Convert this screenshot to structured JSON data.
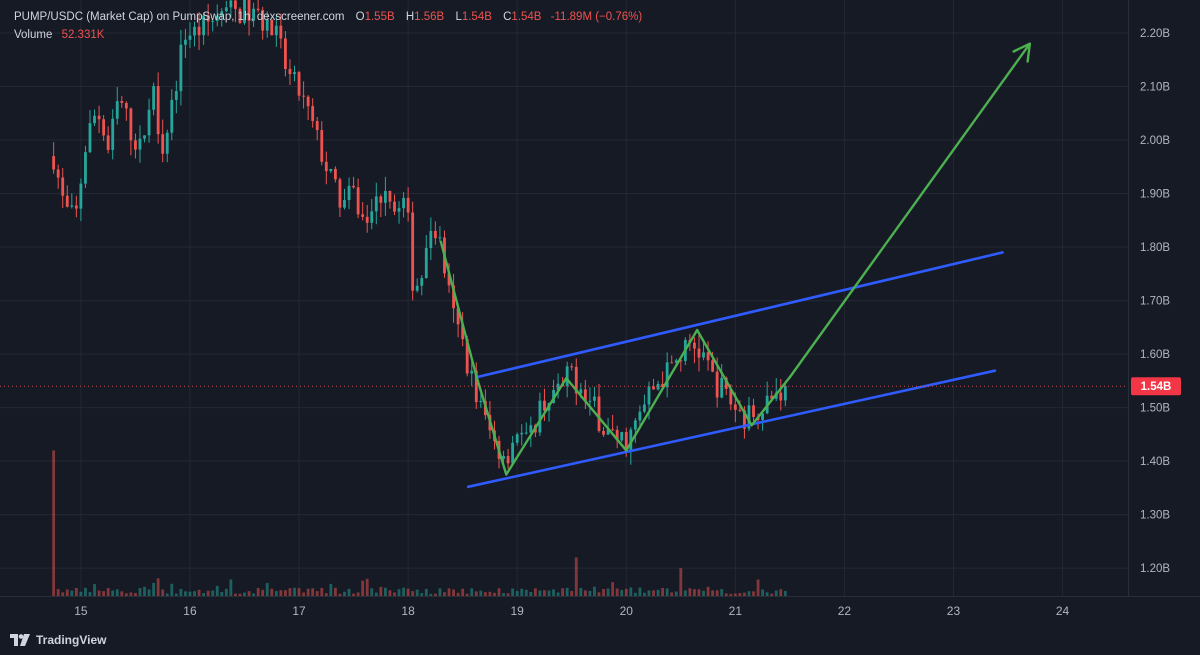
{
  "legend": {
    "symbol": "PUMP/USDC (Market Cap) on PumpSwap, 1h, dexscreener.com",
    "o_label": "O",
    "o_value": "1.55B",
    "h_label": "H",
    "h_value": "1.56B",
    "l_label": "L",
    "l_value": "1.54B",
    "c_label": "C",
    "c_value": "1.54B",
    "change": "-11.89M (−0.76%)",
    "volume_label": "Volume",
    "volume_value": "52.331K"
  },
  "branding": {
    "name": "TradingView",
    "icon": "tradingview-logo-icon"
  },
  "colors": {
    "background": "#161a25",
    "grid": "#232834",
    "up": "#26a69a",
    "down": "#ef5350",
    "channel": "#2f5bff",
    "pattern": "#4caf50",
    "price_label_bg": "#f23645"
  },
  "chart_data": {
    "type": "candlestick",
    "interval": "1h",
    "x_unit": "day of month",
    "y_unit": "market cap (USD)",
    "xlim": [
      14.35,
      24.6
    ],
    "ylim": [
      1.148,
      2.243
    ],
    "y_ticks": [
      "1.20B",
      "1.30B",
      "1.40B",
      "1.50B",
      "1.60B",
      "1.70B",
      "1.80B",
      "1.90B",
      "2.00B",
      "2.10B",
      "2.20B"
    ],
    "y_tick_values": [
      1.2,
      1.3,
      1.4,
      1.5,
      1.6,
      1.7,
      1.8,
      1.9,
      2.0,
      2.1,
      2.2
    ],
    "x_ticks": [
      "15",
      "16",
      "17",
      "18",
      "19",
      "20",
      "21",
      "22",
      "23",
      "24"
    ],
    "x_tick_values": [
      15,
      16,
      17,
      18,
      19,
      20,
      21,
      22,
      23,
      24
    ],
    "grid": true,
    "last_price_label": "1.54B",
    "last_price": 1.54,
    "price_path": [
      [
        14.75,
        1.97
      ],
      [
        14.85,
        1.87
      ],
      [
        14.95,
        1.85
      ],
      [
        15.05,
        2.0
      ],
      [
        15.15,
        2.06
      ],
      [
        15.25,
        1.98
      ],
      [
        15.35,
        2.08
      ],
      [
        15.45,
        2.02
      ],
      [
        15.55,
        1.98
      ],
      [
        15.65,
        2.1
      ],
      [
        15.75,
        1.99
      ],
      [
        15.85,
        2.08
      ],
      [
        15.95,
        2.2
      ],
      [
        16.05,
        2.2
      ],
      [
        16.3,
        2.24
      ],
      [
        16.5,
        2.24
      ],
      [
        16.7,
        2.22
      ],
      [
        16.8,
        2.19
      ],
      [
        16.9,
        2.12
      ],
      [
        17.0,
        2.09
      ],
      [
        17.1,
        2.04
      ],
      [
        17.2,
        1.98
      ],
      [
        17.3,
        1.92
      ],
      [
        17.4,
        1.88
      ],
      [
        17.5,
        1.9
      ],
      [
        17.6,
        1.84
      ],
      [
        17.7,
        1.88
      ],
      [
        17.8,
        1.92
      ],
      [
        17.9,
        1.86
      ],
      [
        17.98,
        1.89
      ],
      [
        18.05,
        1.72
      ],
      [
        18.15,
        1.76
      ],
      [
        18.22,
        1.85
      ],
      [
        18.3,
        1.8
      ],
      [
        18.4,
        1.68
      ],
      [
        18.5,
        1.62
      ],
      [
        18.6,
        1.54
      ],
      [
        18.7,
        1.48
      ],
      [
        18.8,
        1.43
      ],
      [
        18.9,
        1.41
      ],
      [
        19.0,
        1.46
      ],
      [
        19.1,
        1.43
      ],
      [
        19.2,
        1.5
      ],
      [
        19.3,
        1.52
      ],
      [
        19.4,
        1.53
      ],
      [
        19.5,
        1.57
      ],
      [
        19.6,
        1.52
      ],
      [
        19.7,
        1.5
      ],
      [
        19.8,
        1.46
      ],
      [
        19.9,
        1.44
      ],
      [
        20.0,
        1.44
      ],
      [
        20.1,
        1.47
      ],
      [
        20.2,
        1.52
      ],
      [
        20.3,
        1.55
      ],
      [
        20.4,
        1.57
      ],
      [
        20.5,
        1.6
      ],
      [
        20.6,
        1.62
      ],
      [
        20.7,
        1.6
      ],
      [
        20.8,
        1.55
      ],
      [
        20.9,
        1.53
      ],
      [
        21.0,
        1.5
      ],
      [
        21.1,
        1.48
      ],
      [
        21.2,
        1.5
      ],
      [
        21.3,
        1.52
      ],
      [
        21.4,
        1.53
      ],
      [
        21.48,
        1.54
      ]
    ],
    "volume_spikes": [
      [
        14.75,
        1.42
      ],
      [
        19.55,
        1.22
      ],
      [
        20.5,
        1.2
      ]
    ],
    "annotations": {
      "channel_upper": [
        [
          18.63,
          1.557
        ],
        [
          23.45,
          1.79
        ]
      ],
      "channel_lower": [
        [
          18.55,
          1.352
        ],
        [
          23.38,
          1.569
        ]
      ],
      "pattern_path": [
        [
          18.3,
          1.81
        ],
        [
          18.63,
          1.556
        ],
        [
          18.9,
          1.375
        ],
        [
          19.45,
          1.555
        ],
        [
          20.0,
          1.42
        ],
        [
          20.65,
          1.645
        ],
        [
          21.15,
          1.467
        ],
        [
          21.5,
          1.557
        ]
      ],
      "projection_arrow": [
        [
          21.5,
          1.557
        ],
        [
          23.7,
          2.18
        ]
      ]
    }
  }
}
